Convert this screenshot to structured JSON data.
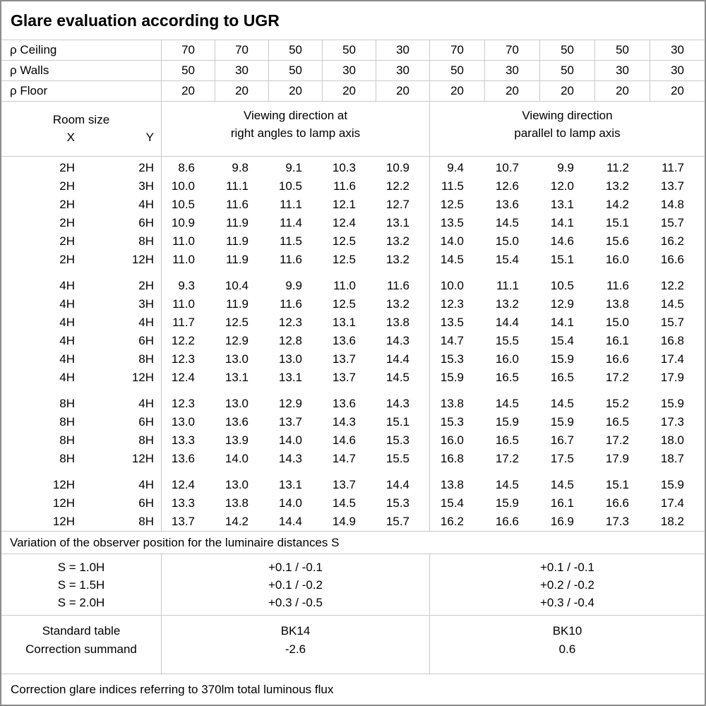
{
  "title": "Glare evaluation according to UGR",
  "colors": {
    "background": "#ffffff",
    "text": "#000000",
    "grid": "#c9c9c9",
    "border": "#8c8c8c"
  },
  "reflectance_rows": [
    {
      "label": "ρ Ceiling",
      "values": [
        "70",
        "70",
        "50",
        "50",
        "30",
        "70",
        "70",
        "50",
        "50",
        "30"
      ]
    },
    {
      "label": "ρ Walls",
      "values": [
        "50",
        "30",
        "50",
        "30",
        "30",
        "50",
        "30",
        "50",
        "30",
        "30"
      ]
    },
    {
      "label": "ρ Floor",
      "values": [
        "20",
        "20",
        "20",
        "20",
        "20",
        "20",
        "20",
        "20",
        "20",
        "20"
      ]
    }
  ],
  "room_header": {
    "title": "Room size",
    "x_label": "X",
    "y_label": "Y"
  },
  "group_headers": {
    "perpendicular_line1": "Viewing direction at",
    "perpendicular_line2": "right angles to lamp axis",
    "parallel_line1": "Viewing direction",
    "parallel_line2": "parallel to lamp axis"
  },
  "row_groups": [
    {
      "rows": [
        {
          "x": "2H",
          "y": "2H",
          "perpendicular": [
            "8.6",
            "9.8",
            "9.1",
            "10.3",
            "10.9"
          ],
          "parallel": [
            "9.4",
            "10.7",
            "9.9",
            "11.2",
            "11.7"
          ]
        },
        {
          "x": "2H",
          "y": "3H",
          "perpendicular": [
            "10.0",
            "11.1",
            "10.5",
            "11.6",
            "12.2"
          ],
          "parallel": [
            "11.5",
            "12.6",
            "12.0",
            "13.2",
            "13.7"
          ]
        },
        {
          "x": "2H",
          "y": "4H",
          "perpendicular": [
            "10.5",
            "11.6",
            "11.1",
            "12.1",
            "12.7"
          ],
          "parallel": [
            "12.5",
            "13.6",
            "13.1",
            "14.2",
            "14.8"
          ]
        },
        {
          "x": "2H",
          "y": "6H",
          "perpendicular": [
            "10.9",
            "11.9",
            "11.4",
            "12.4",
            "13.1"
          ],
          "parallel": [
            "13.5",
            "14.5",
            "14.1",
            "15.1",
            "15.7"
          ]
        },
        {
          "x": "2H",
          "y": "8H",
          "perpendicular": [
            "11.0",
            "11.9",
            "11.5",
            "12.5",
            "13.2"
          ],
          "parallel": [
            "14.0",
            "15.0",
            "14.6",
            "15.6",
            "16.2"
          ]
        },
        {
          "x": "2H",
          "y": "12H",
          "perpendicular": [
            "11.0",
            "11.9",
            "11.6",
            "12.5",
            "13.2"
          ],
          "parallel": [
            "14.5",
            "15.4",
            "15.1",
            "16.0",
            "16.6"
          ]
        }
      ]
    },
    {
      "rows": [
        {
          "x": "4H",
          "y": "2H",
          "perpendicular": [
            "9.3",
            "10.4",
            "9.9",
            "11.0",
            "11.6"
          ],
          "parallel": [
            "10.0",
            "11.1",
            "10.5",
            "11.6",
            "12.2"
          ]
        },
        {
          "x": "4H",
          "y": "3H",
          "perpendicular": [
            "11.0",
            "11.9",
            "11.6",
            "12.5",
            "13.2"
          ],
          "parallel": [
            "12.3",
            "13.2",
            "12.9",
            "13.8",
            "14.5"
          ]
        },
        {
          "x": "4H",
          "y": "4H",
          "perpendicular": [
            "11.7",
            "12.5",
            "12.3",
            "13.1",
            "13.8"
          ],
          "parallel": [
            "13.5",
            "14.4",
            "14.1",
            "15.0",
            "15.7"
          ]
        },
        {
          "x": "4H",
          "y": "6H",
          "perpendicular": [
            "12.2",
            "12.9",
            "12.8",
            "13.6",
            "14.3"
          ],
          "parallel": [
            "14.7",
            "15.5",
            "15.4",
            "16.1",
            "16.8"
          ]
        },
        {
          "x": "4H",
          "y": "8H",
          "perpendicular": [
            "12.3",
            "13.0",
            "13.0",
            "13.7",
            "14.4"
          ],
          "parallel": [
            "15.3",
            "16.0",
            "15.9",
            "16.6",
            "17.4"
          ]
        },
        {
          "x": "4H",
          "y": "12H",
          "perpendicular": [
            "12.4",
            "13.1",
            "13.1",
            "13.7",
            "14.5"
          ],
          "parallel": [
            "15.9",
            "16.5",
            "16.5",
            "17.2",
            "17.9"
          ]
        }
      ]
    },
    {
      "rows": [
        {
          "x": "8H",
          "y": "4H",
          "perpendicular": [
            "12.3",
            "13.0",
            "12.9",
            "13.6",
            "14.3"
          ],
          "parallel": [
            "13.8",
            "14.5",
            "14.5",
            "15.2",
            "15.9"
          ]
        },
        {
          "x": "8H",
          "y": "6H",
          "perpendicular": [
            "13.0",
            "13.6",
            "13.7",
            "14.3",
            "15.1"
          ],
          "parallel": [
            "15.3",
            "15.9",
            "15.9",
            "16.5",
            "17.3"
          ]
        },
        {
          "x": "8H",
          "y": "8H",
          "perpendicular": [
            "13.3",
            "13.9",
            "14.0",
            "14.6",
            "15.3"
          ],
          "parallel": [
            "16.0",
            "16.5",
            "16.7",
            "17.2",
            "18.0"
          ]
        },
        {
          "x": "8H",
          "y": "12H",
          "perpendicular": [
            "13.6",
            "14.0",
            "14.3",
            "14.7",
            "15.5"
          ],
          "parallel": [
            "16.8",
            "17.2",
            "17.5",
            "17.9",
            "18.7"
          ]
        }
      ]
    },
    {
      "rows": [
        {
          "x": "12H",
          "y": "4H",
          "perpendicular": [
            "12.4",
            "13.0",
            "13.1",
            "13.7",
            "14.4"
          ],
          "parallel": [
            "13.8",
            "14.5",
            "14.5",
            "15.1",
            "15.9"
          ]
        },
        {
          "x": "12H",
          "y": "6H",
          "perpendicular": [
            "13.3",
            "13.8",
            "14.0",
            "14.5",
            "15.3"
          ],
          "parallel": [
            "15.4",
            "15.9",
            "16.1",
            "16.6",
            "17.4"
          ]
        },
        {
          "x": "12H",
          "y": "8H",
          "perpendicular": [
            "13.7",
            "14.2",
            "14.4",
            "14.9",
            "15.7"
          ],
          "parallel": [
            "16.2",
            "16.6",
            "16.9",
            "17.3",
            "18.2"
          ]
        }
      ]
    }
  ],
  "variation_note": "Variation of the observer position for the luminaire distances S",
  "s_rows": [
    {
      "label": "S = 1.0H",
      "perpendicular": "+0.1 / -0.1",
      "parallel": "+0.1 / -0.1"
    },
    {
      "label": "S = 1.5H",
      "perpendicular": "+0.1 / -0.2",
      "parallel": "+0.2 / -0.2"
    },
    {
      "label": "S = 2.0H",
      "perpendicular": "+0.3 / -0.5",
      "parallel": "+0.3 / -0.4"
    }
  ],
  "standard_table": {
    "label": "Standard table",
    "perpendicular": "BK14",
    "parallel": "BK10"
  },
  "correction_summand": {
    "label": "Correction summand",
    "perpendicular": "-2.6",
    "parallel": "0.6"
  },
  "footer_note": "Correction glare indices referring to 370lm total luminous flux"
}
